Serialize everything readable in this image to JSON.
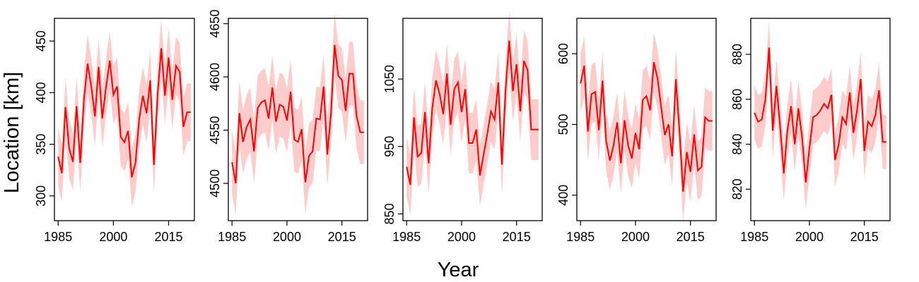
{
  "figure": {
    "xlabel": "Year",
    "ylabel": "Location [km]"
  },
  "colors": {
    "line": "#ff0000",
    "band": "#ffcccc"
  },
  "chart_data": [
    {
      "type": "line",
      "xlim": [
        1984,
        2022
      ],
      "ylim": [
        276,
        472
      ],
      "yticks": [
        300,
        350,
        400,
        450
      ],
      "xticks": [
        1985,
        2000,
        2015
      ],
      "x": [
        1985,
        1986,
        1987,
        1988,
        1989,
        1990,
        1991,
        1992,
        1993,
        1994,
        1995,
        1996,
        1997,
        1998,
        1999,
        2000,
        2001,
        2002,
        2003,
        2004,
        2005,
        2006,
        2007,
        2008,
        2009,
        2010,
        2011,
        2012,
        2013,
        2014,
        2015,
        2016,
        2017,
        2018,
        2019,
        2020,
        2021
      ],
      "series": [
        {
          "values": [
            338,
            322,
            386,
            346,
            333,
            387,
            332,
            393,
            428,
            406,
            377,
            425,
            375,
            405,
            431,
            398,
            406,
            357,
            352,
            363,
            318,
            332,
            374,
            397,
            380,
            412,
            330,
            398,
            443,
            397,
            434,
            393,
            426,
            420,
            367,
            381,
            381
          ]
        }
      ],
      "band_half_width": 28
    },
    {
      "type": "line",
      "xlim": [
        1984,
        2022
      ],
      "ylim": [
        4465,
        4655
      ],
      "yticks": [
        4500,
        4550,
        4600,
        4650
      ],
      "xticks": [
        1985,
        2000,
        2015
      ],
      "x": [
        1985,
        1986,
        1987,
        1988,
        1989,
        1990,
        1991,
        1992,
        1993,
        1994,
        1995,
        1996,
        1997,
        1998,
        1999,
        2000,
        2001,
        2002,
        2003,
        2004,
        2005,
        2006,
        2007,
        2008,
        2009,
        2010,
        2011,
        2012,
        2013,
        2014,
        2015,
        2016,
        2017,
        2018,
        2019,
        2020,
        2021
      ],
      "series": [
        {
          "values": [
            4520,
            4500,
            4566,
            4539,
            4553,
            4560,
            4530,
            4571,
            4576,
            4578,
            4561,
            4590,
            4558,
            4574,
            4572,
            4559,
            4586,
            4541,
            4539,
            4551,
            4501,
            4526,
            4530,
            4561,
            4560,
            4591,
            4527,
            4566,
            4630,
            4601,
            4597,
            4568,
            4603,
            4603,
            4563,
            4548,
            4548
          ]
        }
      ],
      "band_half_width": 30
    },
    {
      "type": "line",
      "xlim": [
        1984,
        2022
      ],
      "ylim": [
        840,
        1140
      ],
      "yticks": [
        850,
        950,
        1050
      ],
      "xticks": [
        1985,
        2000,
        2015
      ],
      "x": [
        1985,
        1986,
        1987,
        1988,
        1989,
        1990,
        1991,
        1992,
        1993,
        1994,
        1995,
        1996,
        1997,
        1998,
        1999,
        2000,
        2001,
        2002,
        2003,
        2004,
        2005,
        2006,
        2007,
        2008,
        2009,
        2010,
        2011,
        2012,
        2013,
        2014,
        2015,
        2016,
        2017,
        2018,
        2019,
        2020,
        2021
      ],
      "series": [
        {
          "values": [
            920,
            893,
            993,
            935,
            940,
            1001,
            925,
            1007,
            1048,
            1028,
            998,
            1058,
            982,
            1035,
            1045,
            1001,
            1035,
            955,
            955,
            975,
            907,
            938,
            968,
            1002,
            990,
            1045,
            923,
            1035,
            1107,
            1032,
            1072,
            1002,
            1077,
            1063,
            975,
            975,
            975
          ]
        }
      ],
      "band_half_width": 45
    },
    {
      "type": "line",
      "xlim": [
        1984,
        2022
      ],
      "ylim": [
        364,
        650
      ],
      "yticks": [
        400,
        500,
        600
      ],
      "xticks": [
        1985,
        2000,
        2015
      ],
      "x": [
        1985,
        1986,
        1987,
        1988,
        1989,
        1990,
        1991,
        1992,
        1993,
        1994,
        1995,
        1996,
        1997,
        1998,
        1999,
        2000,
        2001,
        2002,
        2003,
        2004,
        2005,
        2006,
        2007,
        2008,
        2009,
        2010,
        2011,
        2012,
        2013,
        2014,
        2015,
        2016,
        2017,
        2018,
        2019,
        2020,
        2021
      ],
      "series": [
        {
          "values": [
            558,
            583,
            490,
            543,
            546,
            492,
            562,
            476,
            449,
            470,
            503,
            445,
            506,
            470,
            452,
            488,
            465,
            535,
            540,
            520,
            588,
            565,
            525,
            485,
            500,
            455,
            564,
            490,
            405,
            461,
            433,
            486,
            435,
            440,
            510,
            505,
            505
          ]
        }
      ],
      "band_half_width": 42
    },
    {
      "type": "line",
      "xlim": [
        1984,
        2022
      ],
      "ylim": [
        806,
        896
      ],
      "yticks": [
        820,
        840,
        860,
        880
      ],
      "xticks": [
        1985,
        2000,
        2015
      ],
      "x": [
        1985,
        1986,
        1987,
        1988,
        1989,
        1990,
        1991,
        1992,
        1993,
        1994,
        1995,
        1996,
        1997,
        1998,
        1999,
        2000,
        2001,
        2002,
        2003,
        2004,
        2005,
        2006,
        2007,
        2008,
        2009,
        2010,
        2011,
        2012,
        2013,
        2014,
        2015,
        2016,
        2017,
        2018,
        2019,
        2020,
        2021
      ],
      "series": [
        {
          "values": [
            854,
            850,
            851,
            860,
            883,
            846,
            866,
            848,
            827,
            846,
            857,
            840,
            856,
            843,
            823,
            838,
            852,
            853,
            855,
            858,
            856,
            862,
            833,
            840,
            852,
            849,
            863,
            845,
            855,
            869,
            837,
            850,
            848,
            853,
            864,
            841,
            841
          ]
        }
      ],
      "band_half_width": 12
    }
  ]
}
